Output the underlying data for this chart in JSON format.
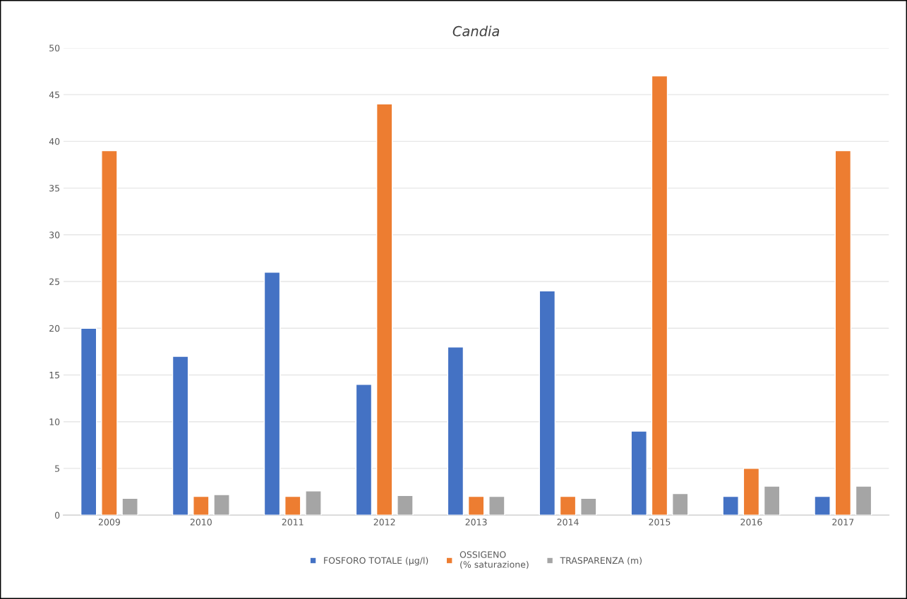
{
  "chart_data": {
    "type": "bar",
    "title": "Candia",
    "categories": [
      "2009",
      "2010",
      "2011",
      "2012",
      "2013",
      "2014",
      "2015",
      "2016",
      "2017"
    ],
    "series": [
      {
        "name": "FOSFORO TOTALE (µg/l)",
        "color": "#4472c4",
        "values": [
          20,
          17,
          26,
          14,
          18,
          24,
          9,
          2,
          2
        ]
      },
      {
        "name": "OSSIGENO\n(% saturazione)",
        "color": "#ed7d31",
        "values": [
          39,
          2,
          2,
          44,
          2,
          2,
          47,
          5,
          39
        ]
      },
      {
        "name": "TRASPARENZA (m)",
        "color": "#a5a5a5",
        "values": [
          1.8,
          2.2,
          2.6,
          2.1,
          2.0,
          1.8,
          2.3,
          3.1,
          3.1
        ]
      }
    ],
    "ylim": [
      0,
      50
    ],
    "yticks": [
      0,
      5,
      10,
      15,
      20,
      25,
      30,
      35,
      40,
      45,
      50
    ],
    "grid": "y",
    "legend": "bottom"
  }
}
